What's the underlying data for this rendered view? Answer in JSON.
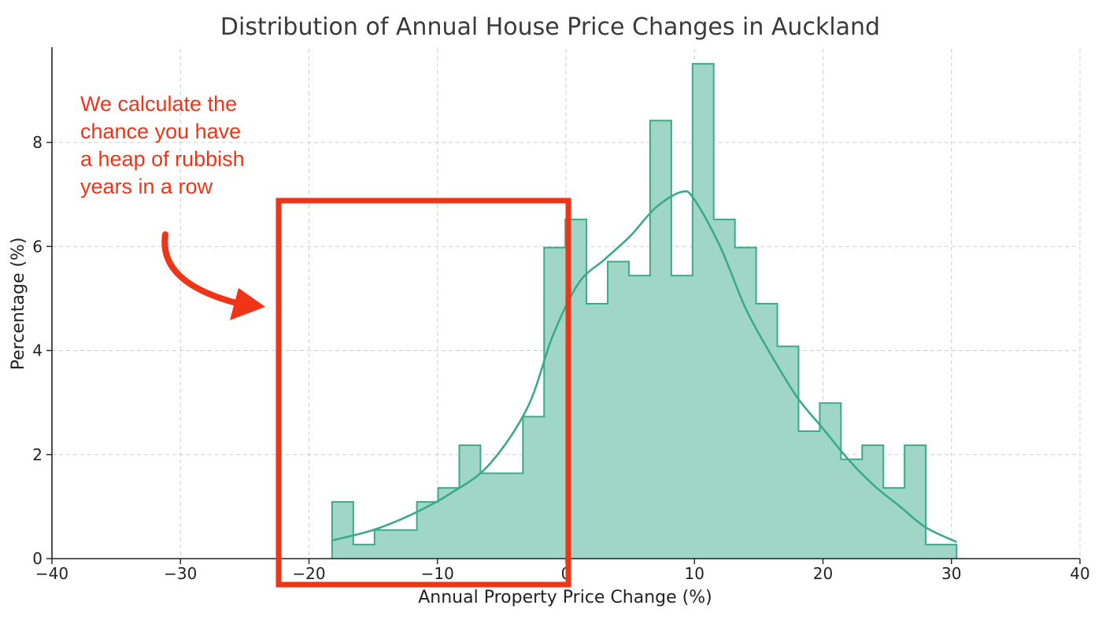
{
  "chart_data": {
    "type": "bar",
    "title": "Distribution of Annual House Price Changes in Auckland",
    "xlabel": "Annual Property Price Change (%)",
    "ylabel": "Percentage (%)",
    "xlim": [
      -40,
      40
    ],
    "ylim": [
      0,
      9.8
    ],
    "xticks": [
      -40,
      -30,
      -20,
      -10,
      0,
      10,
      20,
      30,
      40
    ],
    "xtick_labels": [
      "−40",
      "−30",
      "−20",
      "−10",
      "0",
      "10",
      "20",
      "30",
      "40"
    ],
    "yticks": [
      0,
      2,
      4,
      6,
      8
    ],
    "ytick_labels": [
      "0",
      "2",
      "4",
      "6",
      "8"
    ],
    "grid": true,
    "bins": {
      "edges": [
        -18.2,
        -16.55,
        -14.9,
        -13.25,
        -11.6,
        -9.95,
        -8.3,
        -6.65,
        -5.0,
        -3.35,
        -1.7,
        -0.05,
        1.6,
        3.25,
        4.9,
        6.55,
        8.2,
        9.85,
        11.5,
        13.15,
        14.8,
        16.45,
        18.1,
        19.75,
        21.4,
        23.05,
        24.7,
        26.35,
        28.0,
        29.65,
        30.4
      ],
      "values": [
        1.09,
        0.27,
        0.55,
        0.55,
        1.09,
        1.36,
        2.18,
        1.64,
        1.64,
        2.73,
        5.98,
        6.52,
        4.9,
        5.71,
        5.44,
        8.42,
        5.44,
        9.51,
        6.52,
        5.98,
        4.9,
        4.08,
        2.45,
        2.99,
        1.91,
        2.18,
        1.36,
        2.18,
        0.27,
        0.27
      ]
    },
    "kde": {
      "x": [
        -18.2,
        -15,
        -12,
        -9,
        -6,
        -3,
        -1,
        1,
        3,
        5,
        7,
        9,
        10,
        12,
        14,
        16,
        18,
        20,
        22,
        24,
        26,
        28,
        30.4
      ],
      "y": [
        0.35,
        0.55,
        0.85,
        1.25,
        1.8,
        2.9,
        4.3,
        5.3,
        5.75,
        6.2,
        6.75,
        7.05,
        6.9,
        6.0,
        4.8,
        3.9,
        3.1,
        2.5,
        1.9,
        1.4,
        1.0,
        0.6,
        0.32
      ]
    },
    "colors": {
      "fill": "#9fd6c5",
      "edge": "#3bab86",
      "kde": "#3bab86"
    }
  },
  "annotation": {
    "lines": [
      "We calculate the",
      "chance you have",
      "a heap of rubbish",
      "years in a row"
    ],
    "color": "#f03418"
  }
}
